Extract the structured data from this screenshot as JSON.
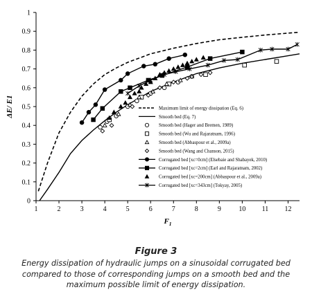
{
  "figure": {
    "title": "Figure 3",
    "caption": "Energy dissipation of hydraulic jumps on a sinusoidal corrugated bed compared to those of corresponding jumps on a smooth bed and the maximum possible limit of energy dissipation."
  },
  "chart_data": {
    "type": "scatter",
    "xlabel_main": "F",
    "xlabel_sub": "1",
    "ylabel": "ΔE/ E1",
    "xlim": [
      1,
      12.5
    ],
    "ylim": [
      0,
      1
    ],
    "x_ticks": [
      1,
      2,
      3,
      4,
      5,
      6,
      7,
      8,
      9,
      10,
      11,
      12
    ],
    "y_ticks": [
      0,
      0.1,
      0.2,
      0.3,
      0.4,
      0.5,
      0.6,
      0.7,
      0.8,
      0.9,
      1
    ],
    "y_tick_labels": [
      "0",
      "0.1",
      "0.2",
      "0.3",
      "0.4",
      "0.5",
      "0.6",
      "0.7",
      "0.8",
      "0.9",
      "1"
    ],
    "grid": false,
    "legend_position": "bottom-right",
    "series": [
      {
        "name": "Maximum limit of energy dissipation (Eq. 6)",
        "style": "dashed",
        "marker": "none",
        "color": "#000000",
        "x": [
          1.1,
          1.5,
          2,
          2.5,
          3,
          3.5,
          4,
          4.5,
          5,
          6,
          7,
          8,
          9,
          10,
          11,
          12,
          12.5
        ],
        "y": [
          0.05,
          0.2,
          0.36,
          0.47,
          0.555,
          0.62,
          0.67,
          0.705,
          0.735,
          0.78,
          0.81,
          0.835,
          0.855,
          0.868,
          0.88,
          0.89,
          0.895
        ]
      },
      {
        "name": "Smooth bed (Eq. 7)",
        "style": "solid",
        "marker": "none",
        "color": "#000000",
        "x": [
          1.15,
          1.5,
          2,
          2.5,
          3,
          3.5,
          4,
          4.5,
          5,
          6,
          7,
          8,
          9,
          10,
          11,
          12,
          12.5
        ],
        "y": [
          0.0,
          0.06,
          0.15,
          0.25,
          0.32,
          0.375,
          0.425,
          0.47,
          0.51,
          0.58,
          0.63,
          0.675,
          0.705,
          0.73,
          0.75,
          0.77,
          0.78
        ]
      },
      {
        "name": "Smooth bed (Hager and Bremen, 1989)",
        "style": "none",
        "marker": "circle-open",
        "color": "#000000",
        "x": [
          3.8,
          4.1,
          4.5,
          5.0,
          5.4,
          6.0,
          6.6,
          7.2,
          7.8
        ],
        "y": [
          0.39,
          0.42,
          0.45,
          0.5,
          0.53,
          0.57,
          0.6,
          0.63,
          0.66
        ]
      },
      {
        "name": "Smooth bed (Wu and Rajaratnam, 1996)",
        "style": "none",
        "marker": "square-open",
        "color": "#000000",
        "x": [
          4.2,
          5.6,
          6.8,
          8.4,
          10.1,
          11.5
        ],
        "y": [
          0.43,
          0.55,
          0.62,
          0.67,
          0.72,
          0.74
        ]
      },
      {
        "name": "Smooth bed (Abbaspour et al., 2009a)",
        "style": "none",
        "marker": "triangle-open",
        "color": "#000000",
        "x": [
          4.0,
          4.6,
          5.1,
          5.5,
          6.1,
          6.7,
          7.3,
          7.8
        ],
        "y": [
          0.4,
          0.46,
          0.51,
          0.55,
          0.58,
          0.62,
          0.64,
          0.66
        ]
      },
      {
        "name": "Smooth bed (Wang and Chanson, 2015)",
        "style": "none",
        "marker": "diamond-open",
        "color": "#000000",
        "x": [
          3.9,
          4.3,
          5.2,
          5.9,
          6.4,
          7.0,
          7.6,
          8.2,
          8.6
        ],
        "y": [
          0.37,
          0.4,
          0.5,
          0.56,
          0.6,
          0.63,
          0.65,
          0.67,
          0.68
        ]
      },
      {
        "name": "Corrugated bed [xc=0cm] (Elsebaie and  Shabayek, 2010)",
        "style": "solid",
        "marker": "circle-filled",
        "color": "#000000",
        "x": [
          3.0,
          3.3,
          3.6,
          4.0,
          4.7,
          5.0,
          5.7,
          6.2,
          6.8,
          7.5
        ],
        "y": [
          0.415,
          0.47,
          0.51,
          0.59,
          0.64,
          0.675,
          0.715,
          0.725,
          0.755,
          0.775
        ]
      },
      {
        "name": "Corrugated bed [xc=2cm] (Earl and Rajaratnam, 2002)",
        "style": "solid",
        "marker": "square-filled",
        "color": "#000000",
        "x": [
          3.5,
          3.9,
          4.7,
          5.1,
          5.9,
          6.5,
          7.6,
          8.6,
          10.0
        ],
        "y": [
          0.43,
          0.49,
          0.58,
          0.6,
          0.64,
          0.665,
          0.71,
          0.755,
          0.79
        ]
      },
      {
        "name": "Corrugated bed [xc=200cm] (Abbaspour et al., 2009a)",
        "style": "none",
        "marker": "triangle-filled",
        "color": "#000000",
        "x": [
          4.2,
          4.4,
          4.7,
          4.9,
          5.1,
          5.3,
          5.5,
          5.6,
          5.8,
          6.0,
          6.2,
          6.4,
          6.6,
          6.8,
          7.0,
          7.2,
          7.4,
          7.6,
          7.8,
          8.0,
          8.3
        ],
        "y": [
          0.44,
          0.47,
          0.5,
          0.52,
          0.55,
          0.57,
          0.58,
          0.6,
          0.62,
          0.63,
          0.65,
          0.67,
          0.68,
          0.69,
          0.7,
          0.71,
          0.72,
          0.73,
          0.74,
          0.75,
          0.76
        ]
      },
      {
        "name": "Corrugated bed [xc=343cm] (Tokyay, 2005)",
        "style": "solid",
        "marker": "star",
        "color": "#000000",
        "x": [
          5.0,
          5.5,
          6.0,
          6.6,
          7.1,
          7.7,
          8.5,
          9.2,
          9.8,
          10.8,
          11.3,
          12.0,
          12.4
        ],
        "y": [
          0.57,
          0.61,
          0.64,
          0.67,
          0.685,
          0.7,
          0.72,
          0.745,
          0.75,
          0.8,
          0.805,
          0.805,
          0.83
        ]
      }
    ]
  }
}
